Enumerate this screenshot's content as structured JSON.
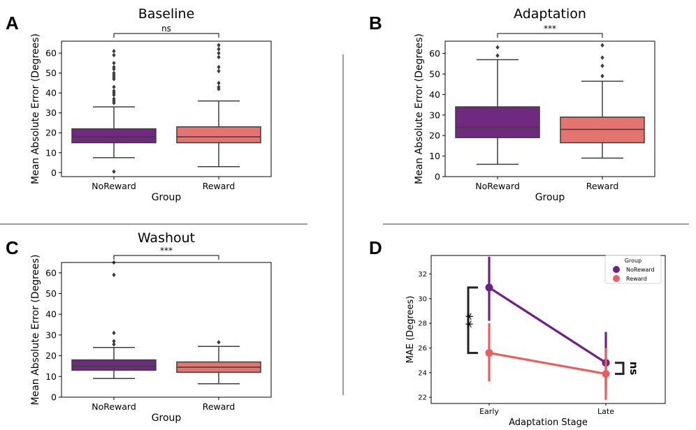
{
  "chart_data": [
    {
      "id": "A",
      "type": "box",
      "title": "Baseline",
      "xlabel": "Group",
      "ylabel": "Mean Absolute Error (Degrees)",
      "categories": [
        "NoReward",
        "Reward"
      ],
      "ylim": [
        -2,
        66
      ],
      "yticks": [
        0,
        10,
        20,
        30,
        40,
        50,
        60
      ],
      "boxes": [
        {
          "name": "NoReward",
          "whislo": 7.5,
          "q1": 15,
          "median": 18,
          "q3": 22,
          "whishi": 33,
          "fliers": [
            61,
            59,
            55,
            53,
            52,
            50,
            49,
            48,
            47,
            43,
            41,
            40,
            39,
            37,
            36,
            35,
            0.5
          ]
        },
        {
          "name": "Reward",
          "whislo": 3,
          "q1": 15,
          "median": 18,
          "q3": 23,
          "whishi": 36,
          "fliers": [
            64,
            62,
            60,
            58,
            53,
            51,
            45,
            43,
            42
          ]
        }
      ],
      "colors": [
        "#6f2a7f",
        "#e5736f"
      ],
      "significance": "ns"
    },
    {
      "id": "B",
      "type": "box",
      "title": "Adaptation",
      "xlabel": "Group",
      "ylabel": "Mean Absolute Error (Degrees)",
      "categories": [
        "NoReward",
        "Reward"
      ],
      "ylim": [
        0,
        66
      ],
      "yticks": [
        0,
        10,
        20,
        30,
        40,
        50,
        60
      ],
      "boxes": [
        {
          "name": "NoReward",
          "whislo": 6,
          "q1": 19,
          "median": 24,
          "q3": 34,
          "whishi": 57,
          "fliers": [
            63,
            59
          ]
        },
        {
          "name": "Reward",
          "whislo": 9,
          "q1": 16.5,
          "median": 23,
          "q3": 29,
          "whishi": 46.5,
          "fliers": [
            64,
            58,
            54,
            49
          ]
        }
      ],
      "colors": [
        "#6f2a7f",
        "#e5736f"
      ],
      "significance": "***"
    },
    {
      "id": "C",
      "type": "box",
      "title": "Washout",
      "xlabel": "Group",
      "ylabel": "Mean Absolute Error (Degrees)",
      "categories": [
        "NoReward",
        "Reward"
      ],
      "ylim": [
        0,
        65
      ],
      "yticks": [
        0,
        10,
        20,
        30,
        40,
        50,
        60
      ],
      "boxes": [
        {
          "name": "NoReward",
          "whislo": 9,
          "q1": 13,
          "median": 15,
          "q3": 18,
          "whishi": 24,
          "fliers": [
            65,
            59,
            31,
            27,
            25.5
          ]
        },
        {
          "name": "Reward",
          "whislo": 6.5,
          "q1": 12,
          "median": 14.5,
          "q3": 17,
          "whishi": 24.5,
          "fliers": [
            26.5
          ]
        }
      ],
      "colors": [
        "#6f2a7f",
        "#e5736f"
      ],
      "significance": "***"
    },
    {
      "id": "D",
      "type": "line",
      "title": "",
      "xlabel": "Adaptation Stage",
      "ylabel": "MAE (Degrees)",
      "categories": [
        "Early",
        "Late"
      ],
      "ylim": [
        21.5,
        33.5
      ],
      "yticks": [
        22,
        24,
        26,
        28,
        30,
        32
      ],
      "legend_title": "Group",
      "legend_position": "top-right",
      "series": [
        {
          "name": "NoReward",
          "color": "#6f1f87",
          "values": [
            30.9,
            24.8
          ],
          "ci_low": [
            28.2,
            22.6
          ],
          "ci_high": [
            33.4,
            27.3
          ]
        },
        {
          "name": "Reward",
          "color": "#ec5d5d",
          "values": [
            25.6,
            23.9
          ],
          "ci_low": [
            23.3,
            21.8
          ],
          "ci_high": [
            28.0,
            26.0
          ]
        }
      ],
      "annotations": [
        {
          "text": "**",
          "between": "Early"
        },
        {
          "text": "ns",
          "between": "Late"
        }
      ]
    }
  ]
}
